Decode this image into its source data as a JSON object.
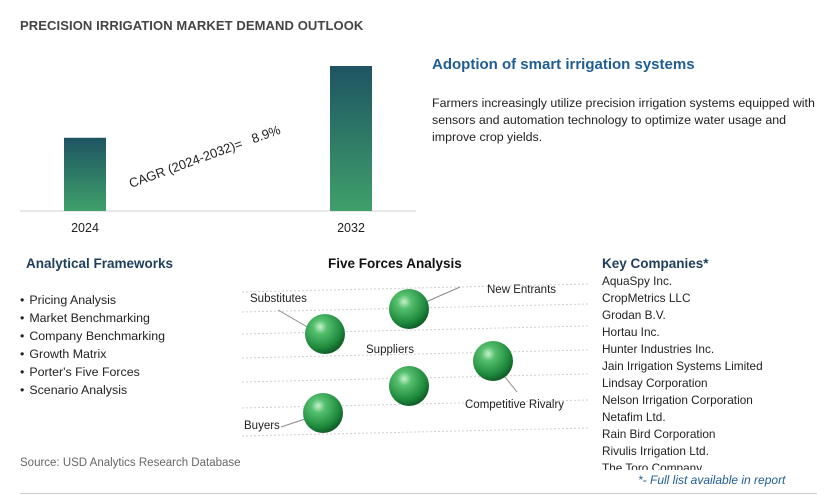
{
  "page_title": "PRECISION IRRIGATION MARKET DEMAND OUTLOOK",
  "chart_data": {
    "type": "bar",
    "categories": [
      "2024",
      "2032"
    ],
    "values": [
      1.0,
      1.98
    ],
    "annotation": "CAGR (2024-2032)=   8.9%",
    "cagr": "8.9%",
    "colors": {
      "bar_top": "#1e5463",
      "bar_bottom": "#3fa06a"
    }
  },
  "adoption": {
    "title": "Adoption of smart irrigation systems",
    "body": "Farmers increasingly utilize precision irrigation systems equipped with sensors and automation technology to optimize water usage and improve crop yields."
  },
  "analytical_frameworks": {
    "title": "Analytical Frameworks",
    "items": [
      "Pricing Analysis",
      "Market Benchmarking",
      "Company Benchmarking",
      "Growth Matrix",
      "Porter's Five Forces",
      "Scenario Analysis"
    ]
  },
  "five_forces": {
    "title": "Five Forces Analysis",
    "labels": {
      "substitutes": "Substitutes",
      "new_entrants": "New Entrants",
      "suppliers": "Suppliers",
      "competitive_rivalry": "Competitive Rivalry",
      "buyers": "Buyers"
    }
  },
  "key_companies": {
    "title": "Key Companies*",
    "items": [
      "AquaSpy Inc.",
      "CropMetrics LLC",
      "Grodan B.V.",
      "Hortau Inc.",
      "Hunter Industries Inc.",
      "Jain Irrigation Systems Limited",
      "Lindsay Corporation",
      "Nelson Irrigation Corporation",
      "Netafim Ltd.",
      "Rain Bird Corporation",
      "Rivulis Irrigation Ltd.",
      "The Toro Company"
    ],
    "note": "*- Full list available in report"
  },
  "source": "Source: USD Analytics Research Database"
}
